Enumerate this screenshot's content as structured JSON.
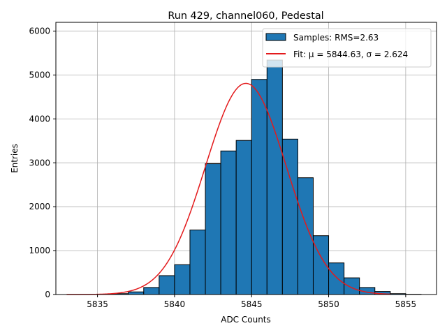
{
  "chart_data": {
    "type": "bar",
    "title": "Run 429, channel060, Pedestal",
    "xlabel": "ADC Counts",
    "ylabel": "Entries",
    "xlim": [
      5832.3,
      5857.0
    ],
    "ylim": [
      0,
      6200
    ],
    "xticks": [
      5835,
      5840,
      5845,
      5850,
      5855
    ],
    "yticks": [
      0,
      1000,
      2000,
      3000,
      4000,
      5000,
      6000
    ],
    "grid": true,
    "legend_position": "top-right",
    "histogram": {
      "name": "Samples: RMS=2.63",
      "color": "#1f77b4",
      "bin_edges": [
        5833,
        5834,
        5835,
        5836,
        5837,
        5838,
        5839,
        5840,
        5841,
        5842,
        5843,
        5844,
        5845,
        5846,
        5847,
        5848,
        5849,
        5850,
        5851,
        5852,
        5853,
        5854,
        5855,
        5856
      ],
      "values": [
        0,
        0,
        5,
        20,
        60,
        160,
        430,
        680,
        1470,
        2980,
        3270,
        3510,
        4900,
        5340,
        3540,
        2660,
        1340,
        720,
        380,
        160,
        70,
        20,
        5
      ]
    },
    "fit": {
      "name": "Fit: μ = 5844.63, σ = 2.624",
      "color": "#e31a1c",
      "mu": 5844.63,
      "sigma": 2.624,
      "amplitude": 4810,
      "x_range": [
        5833,
        5854
      ]
    }
  }
}
